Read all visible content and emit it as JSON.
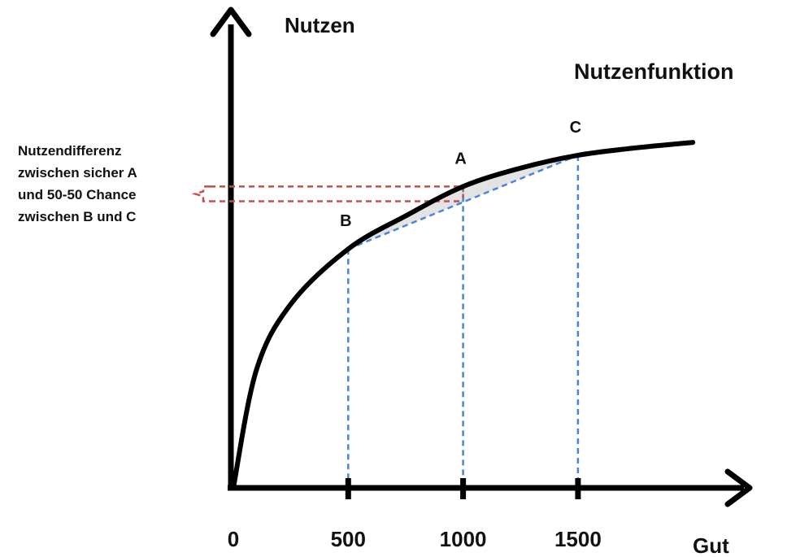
{
  "chart_data": {
    "type": "line",
    "title": "",
    "ylabel": "Nutzen",
    "xlabel": "Gut",
    "series": [
      {
        "name": "Nutzenfunktion",
        "x": [
          0,
          100,
          250,
          500,
          750,
          1000,
          1250,
          1500,
          1750,
          2000
        ],
        "y": [
          0,
          0.32,
          0.5,
          0.65,
          0.74,
          0.82,
          0.87,
          0.905,
          0.925,
          0.94
        ]
      }
    ],
    "xticks": [
      "0",
      "500",
      "1000",
      "1500"
    ],
    "points": [
      {
        "label": "B",
        "x": 500,
        "y": 0.65
      },
      {
        "label": "A",
        "x": 1000,
        "y": 0.82
      },
      {
        "label": "C",
        "x": 1500,
        "y": 0.905
      }
    ],
    "chord_mid": {
      "x": 1000,
      "y": 0.78
    },
    "xlim": [
      0,
      2000
    ],
    "ylim": [
      0,
      1
    ],
    "annotation_lines": [
      "Nutzendifferenz",
      "zwischen sicher A",
      "und 50-50 Chance",
      "zwischen B und C"
    ],
    "colors": {
      "curve": "#000000",
      "guides": "#4a86d8",
      "bracket": "#c0504d"
    }
  }
}
